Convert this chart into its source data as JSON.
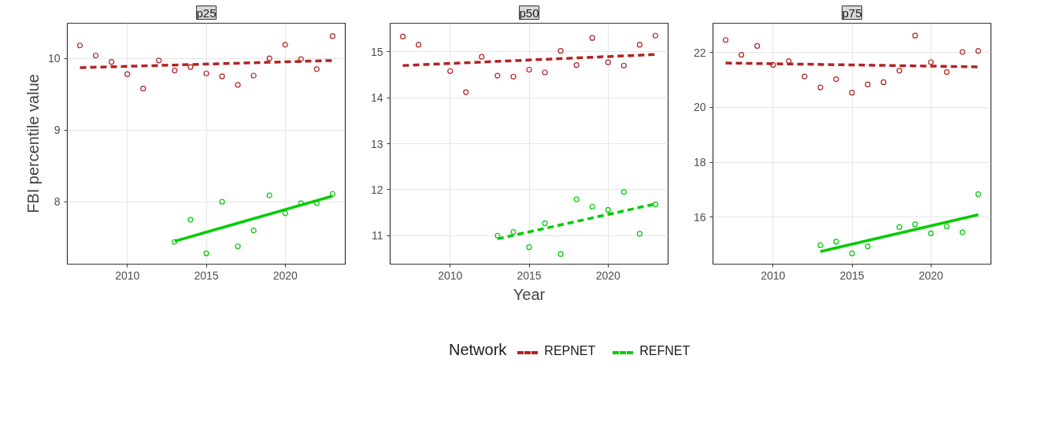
{
  "chart_data": [
    {
      "type": "scatter",
      "title": "p25",
      "ylabel": "FBI percentile value",
      "xlim": [
        2006.2,
        2023.8
      ],
      "ylim": [
        7.13,
        10.49
      ],
      "xticks": [
        2010,
        2015,
        2020
      ],
      "yticks": [
        8,
        9,
        10
      ],
      "grid": true,
      "series": [
        {
          "type": "scatter",
          "marker": "circle",
          "color": "#b22222",
          "x": [
            2007,
            2008,
            2009,
            2010,
            2011,
            2012,
            2013,
            2014,
            2015,
            2016,
            2017,
            2018,
            2019,
            2020,
            2021,
            2022,
            2023
          ],
          "values": [
            10.18,
            10.04,
            9.95,
            9.78,
            9.58,
            9.97,
            9.83,
            9.88,
            9.79,
            9.75,
            9.63,
            9.76,
            10.0,
            10.19,
            9.99,
            9.85,
            10.31
          ]
        },
        {
          "type": "scatter",
          "marker": "circle",
          "color": "#00cc00",
          "x": [
            2013,
            2014,
            2015,
            2016,
            2017,
            2018,
            2019,
            2020,
            2021,
            2022,
            2023
          ],
          "values": [
            7.44,
            7.75,
            7.28,
            8.0,
            7.38,
            7.6,
            8.09,
            7.84,
            7.98,
            7.98,
            8.11
          ]
        },
        {
          "type": "line",
          "line_style": "dashed",
          "color": "#b22222",
          "x": [
            2007,
            2023
          ],
          "values": [
            9.87,
            9.97
          ]
        },
        {
          "type": "line",
          "line_style": "solid",
          "color": "#00cc00",
          "x": [
            2013,
            2023
          ],
          "values": [
            7.45,
            8.08
          ]
        }
      ]
    },
    {
      "type": "scatter",
      "title": "p50",
      "xlabel": "Year",
      "legend_title": "Network",
      "legend": "bottom",
      "xlim": [
        2006.2,
        2023.8
      ],
      "ylim": [
        10.38,
        15.62
      ],
      "xticks": [
        2010,
        2015,
        2020
      ],
      "yticks": [
        11,
        12,
        13,
        14,
        15
      ],
      "grid": true,
      "series": [
        {
          "type": "scatter",
          "marker": "circle",
          "color": "#b22222",
          "x": [
            2007,
            2008,
            2009,
            2010,
            2011,
            2012,
            2013,
            2014,
            2015,
            2016,
            2017,
            2018,
            2019,
            2020,
            2021,
            2022,
            2023
          ],
          "values": [
            15.33,
            15.15,
            null,
            14.58,
            14.12,
            14.89,
            14.48,
            14.46,
            14.61,
            14.55,
            15.02,
            14.71,
            15.3,
            14.77,
            14.7,
            15.15,
            15.35
          ]
        },
        {
          "type": "scatter",
          "marker": "circle",
          "color": "#00cc00",
          "x": [
            2013,
            2014,
            2015,
            2016,
            2017,
            2018,
            2019,
            2020,
            2021,
            2022,
            2023
          ],
          "values": [
            11.0,
            11.08,
            10.75,
            11.27,
            10.6,
            11.79,
            11.63,
            11.56,
            11.95,
            11.04,
            11.68
          ]
        },
        {
          "type": "line",
          "line_style": "dashed",
          "name": "REPNET",
          "color": "#b22222",
          "x": [
            2007,
            2023
          ],
          "values": [
            14.7,
            14.94
          ]
        },
        {
          "type": "line",
          "line_style": "dashed",
          "name": "REFNET",
          "color": "#00cc00",
          "x": [
            2013,
            2023
          ],
          "values": [
            10.93,
            11.69
          ]
        }
      ]
    },
    {
      "type": "scatter",
      "title": "p75",
      "xlim": [
        2006.2,
        2023.8
      ],
      "ylim": [
        14.29,
        23.07
      ],
      "xticks": [
        2010,
        2015,
        2020
      ],
      "yticks": [
        16,
        18,
        20,
        22
      ],
      "grid": true,
      "series": [
        {
          "type": "scatter",
          "marker": "circle",
          "color": "#b22222",
          "x": [
            2007,
            2008,
            2009,
            2010,
            2011,
            2012,
            2013,
            2014,
            2015,
            2016,
            2017,
            2018,
            2019,
            2020,
            2021,
            2022,
            2023
          ],
          "values": [
            22.46,
            21.92,
            22.24,
            21.55,
            21.69,
            21.13,
            20.73,
            21.03,
            20.54,
            20.84,
            20.92,
            21.34,
            22.62,
            21.65,
            21.29,
            22.02,
            22.06
          ]
        },
        {
          "type": "scatter",
          "marker": "circle",
          "color": "#00cc00",
          "x": [
            2013,
            2014,
            2015,
            2016,
            2017,
            2018,
            2019,
            2020,
            2021,
            2022,
            2023
          ],
          "values": [
            14.98,
            15.11,
            14.68,
            14.94,
            null,
            15.64,
            15.74,
            15.41,
            15.66,
            15.45,
            16.84
          ]
        },
        {
          "type": "line",
          "line_style": "dashed",
          "color": "#b22222",
          "x": [
            2007,
            2023
          ],
          "values": [
            21.62,
            21.48
          ]
        },
        {
          "type": "line",
          "line_style": "solid",
          "color": "#00cc00",
          "x": [
            2013,
            2023
          ],
          "values": [
            14.75,
            16.09
          ]
        }
      ]
    }
  ]
}
